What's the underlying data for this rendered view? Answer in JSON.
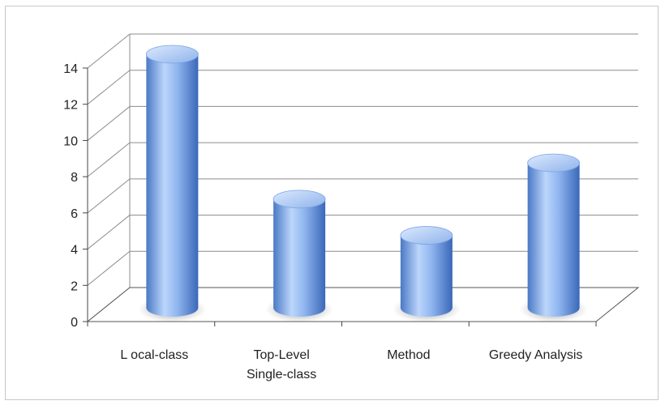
{
  "chart_data": {
    "type": "bar",
    "style": "3d-cylinder",
    "categories": [
      [
        "L ocal-class"
      ],
      [
        "Top-Level",
        "Single-class"
      ],
      [
        "Method"
      ],
      [
        "Greedy Analysis"
      ]
    ],
    "values": [
      14,
      6,
      4,
      8
    ],
    "ylim": [
      0,
      14
    ],
    "yticks": [
      "0",
      "2",
      "4",
      "6",
      "8",
      "10",
      "12",
      "14"
    ],
    "grid": true,
    "legend": "none"
  },
  "colors": {
    "bar_light": "#bcd6fb",
    "bar_mid": "#7aa6e8",
    "bar_dark": "#3e6fc0",
    "grid": "#8c8c8c",
    "shadow": "#6a6a6a"
  }
}
